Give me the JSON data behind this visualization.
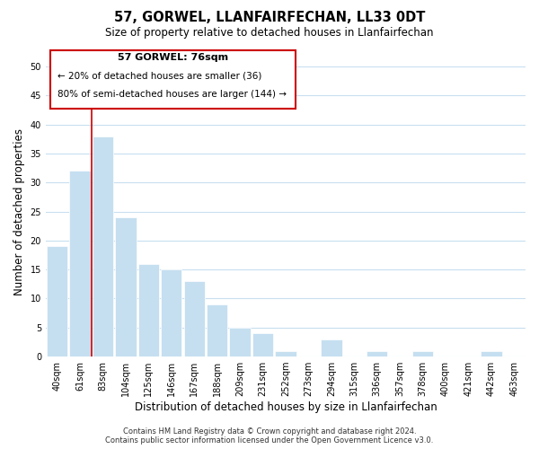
{
  "title": "57, GORWEL, LLANFAIRFECHAN, LL33 0DT",
  "subtitle": "Size of property relative to detached houses in Llanfairfechan",
  "xlabel": "Distribution of detached houses by size in Llanfairfechan",
  "ylabel": "Number of detached properties",
  "bar_labels": [
    "40sqm",
    "61sqm",
    "83sqm",
    "104sqm",
    "125sqm",
    "146sqm",
    "167sqm",
    "188sqm",
    "209sqm",
    "231sqm",
    "252sqm",
    "273sqm",
    "294sqm",
    "315sqm",
    "336sqm",
    "357sqm",
    "378sqm",
    "400sqm",
    "421sqm",
    "442sqm",
    "463sqm"
  ],
  "bar_values": [
    19,
    32,
    38,
    24,
    16,
    15,
    13,
    9,
    5,
    4,
    1,
    0,
    3,
    0,
    1,
    0,
    1,
    0,
    0,
    1,
    0
  ],
  "bar_color": "#C5DFF0",
  "bar_edge_color": "#FFFFFF",
  "vline_color": "#CC0000",
  "annotation_box_title": "57 GORWEL: 76sqm",
  "annotation_line1": "← 20% of detached houses are smaller (36)",
  "annotation_line2": "80% of semi-detached houses are larger (144) →",
  "ylim": [
    0,
    50
  ],
  "yticks": [
    0,
    5,
    10,
    15,
    20,
    25,
    30,
    35,
    40,
    45,
    50
  ],
  "footer_line1": "Contains HM Land Registry data © Crown copyright and database right 2024.",
  "footer_line2": "Contains public sector information licensed under the Open Government Licence v3.0.",
  "bg_color": "#FFFFFF",
  "grid_color": "#C8DFF0",
  "title_fontsize": 10.5,
  "subtitle_fontsize": 8.5,
  "axis_label_fontsize": 8.5,
  "tick_fontsize": 7,
  "footer_fontsize": 6
}
